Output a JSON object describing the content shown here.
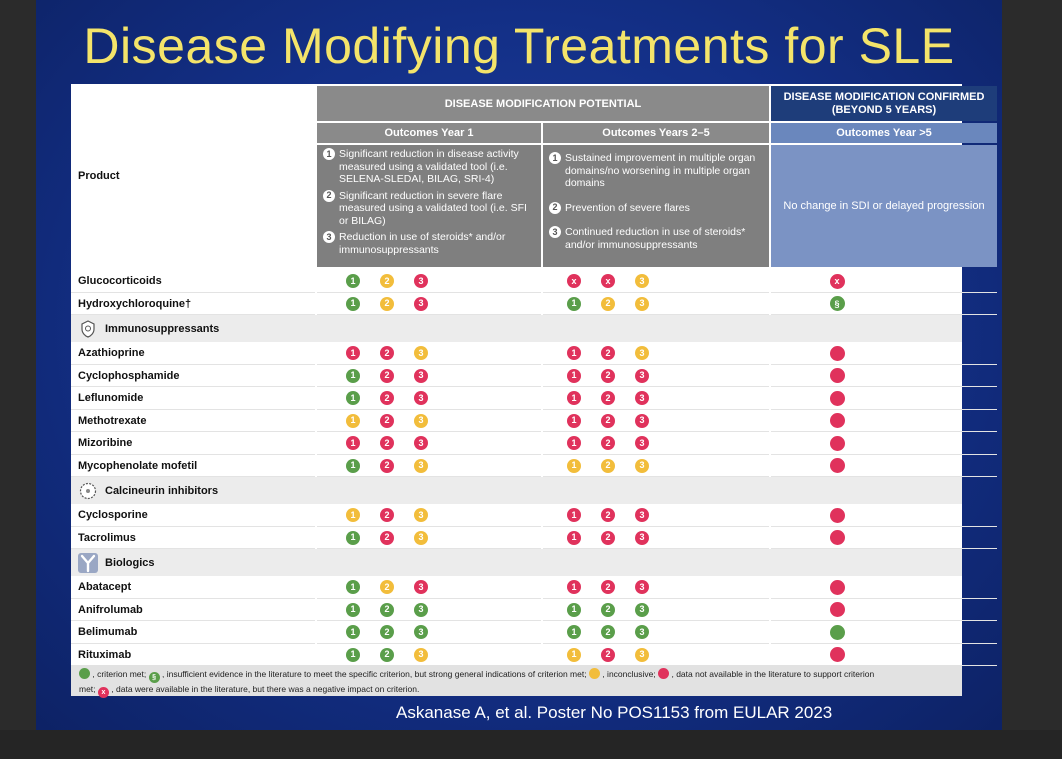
{
  "title": "Disease Modifying Treatments for SLE",
  "citation": "Askanase A, et al. Poster No POS1153 from EULAR 2023",
  "colors": {
    "met": "#5a9e4a",
    "inconclusive": "#f2bd3b",
    "no_data": "#e0325c",
    "negative": "#e0325c"
  },
  "header": {
    "product": "Product",
    "potential": "DISEASE MODIFICATION POTENTIAL",
    "confirmed": "DISEASE MODIFICATION CONFIRMED (BEYOND 5 YEARS)",
    "year1": "Outcomes Year 1",
    "year25": "Outcomes Years 2–5",
    "year5": "Outcomes Year >5",
    "y1_criteria": [
      {
        "num": "1",
        "text": "Significant reduction in disease activity measured using a validated tool (i.e. SELENA-SLEDAI, BILAG, SRI-4)"
      },
      {
        "num": "2",
        "text": "Significant reduction in severe flare measured using a validated tool (i.e. SFI or BILAG)"
      },
      {
        "num": "3",
        "text": "Reduction in use of steroids* and/or immunosuppressants"
      }
    ],
    "y25_criteria": [
      {
        "num": "1",
        "text": "Sustained improvement in multiple organ domains/no worsening in multiple organ domains"
      },
      {
        "num": "2",
        "text": "Prevention of severe flares"
      },
      {
        "num": "3",
        "text": "Continued reduction in use of steroids* and/or immunosuppressants"
      }
    ],
    "y5_criterion": "No change in SDI or delayed progression"
  },
  "rows": [
    {
      "type": "product",
      "name": "Glucocorticoids",
      "y1": [
        [
          "1",
          "met"
        ],
        [
          "2",
          "incon"
        ],
        [
          "3",
          "nodata"
        ]
      ],
      "y25": [
        [
          "x",
          "neg"
        ],
        [
          "x",
          "neg"
        ],
        [
          "3",
          "incon"
        ]
      ],
      "y5": [
        "x",
        "neg"
      ]
    },
    {
      "type": "product",
      "name": "Hydroxychloroquine†",
      "y1": [
        [
          "1",
          "met"
        ],
        [
          "2",
          "incon"
        ],
        [
          "3",
          "nodata"
        ]
      ],
      "y25": [
        [
          "1",
          "met"
        ],
        [
          "2",
          "incon"
        ],
        [
          "3",
          "incon"
        ]
      ],
      "y5": [
        "§",
        "met"
      ]
    },
    {
      "type": "group",
      "name": "Immunosuppressants",
      "icon": "shield-icon"
    },
    {
      "type": "product",
      "name": "Azathioprine",
      "y1": [
        [
          "1",
          "nodata"
        ],
        [
          "2",
          "nodata"
        ],
        [
          "3",
          "incon"
        ]
      ],
      "y25": [
        [
          "1",
          "nodata"
        ],
        [
          "2",
          "nodata"
        ],
        [
          "3",
          "incon"
        ]
      ],
      "y5": [
        "",
        "nodata"
      ]
    },
    {
      "type": "product",
      "name": "Cyclophosphamide",
      "y1": [
        [
          "1",
          "met"
        ],
        [
          "2",
          "nodata"
        ],
        [
          "3",
          "nodata"
        ]
      ],
      "y25": [
        [
          "1",
          "nodata"
        ],
        [
          "2",
          "nodata"
        ],
        [
          "3",
          "nodata"
        ]
      ],
      "y5": [
        "",
        "nodata"
      ]
    },
    {
      "type": "product",
      "name": "Leflunomide",
      "y1": [
        [
          "1",
          "met"
        ],
        [
          "2",
          "nodata"
        ],
        [
          "3",
          "nodata"
        ]
      ],
      "y25": [
        [
          "1",
          "nodata"
        ],
        [
          "2",
          "nodata"
        ],
        [
          "3",
          "nodata"
        ]
      ],
      "y5": [
        "",
        "nodata"
      ]
    },
    {
      "type": "product",
      "name": "Methotrexate",
      "y1": [
        [
          "1",
          "incon"
        ],
        [
          "2",
          "nodata"
        ],
        [
          "3",
          "incon"
        ]
      ],
      "y25": [
        [
          "1",
          "nodata"
        ],
        [
          "2",
          "nodata"
        ],
        [
          "3",
          "nodata"
        ]
      ],
      "y5": [
        "",
        "nodata"
      ]
    },
    {
      "type": "product",
      "name": "Mizoribine",
      "y1": [
        [
          "1",
          "nodata"
        ],
        [
          "2",
          "nodata"
        ],
        [
          "3",
          "nodata"
        ]
      ],
      "y25": [
        [
          "1",
          "nodata"
        ],
        [
          "2",
          "nodata"
        ],
        [
          "3",
          "nodata"
        ]
      ],
      "y5": [
        "",
        "nodata"
      ]
    },
    {
      "type": "product",
      "name": "Mycophenolate mofetil",
      "y1": [
        [
          "1",
          "met"
        ],
        [
          "2",
          "nodata"
        ],
        [
          "3",
          "incon"
        ]
      ],
      "y25": [
        [
          "1",
          "incon"
        ],
        [
          "2",
          "incon"
        ],
        [
          "3",
          "incon"
        ]
      ],
      "y5": [
        "",
        "nodata"
      ]
    },
    {
      "type": "group",
      "name": "Calcineurin inhibitors",
      "icon": "cell-icon"
    },
    {
      "type": "product",
      "name": "Cyclosporine",
      "y1": [
        [
          "1",
          "incon"
        ],
        [
          "2",
          "nodata"
        ],
        [
          "3",
          "incon"
        ]
      ],
      "y25": [
        [
          "1",
          "nodata"
        ],
        [
          "2",
          "nodata"
        ],
        [
          "3",
          "nodata"
        ]
      ],
      "y5": [
        "",
        "nodata"
      ]
    },
    {
      "type": "product",
      "name": "Tacrolimus",
      "y1": [
        [
          "1",
          "met"
        ],
        [
          "2",
          "nodata"
        ],
        [
          "3",
          "incon"
        ]
      ],
      "y25": [
        [
          "1",
          "nodata"
        ],
        [
          "2",
          "nodata"
        ],
        [
          "3",
          "nodata"
        ]
      ],
      "y5": [
        "",
        "nodata"
      ]
    },
    {
      "type": "group",
      "name": "Biologics",
      "icon": "antibody-icon"
    },
    {
      "type": "product",
      "name": "Abatacept",
      "y1": [
        [
          "1",
          "met"
        ],
        [
          "2",
          "incon"
        ],
        [
          "3",
          "nodata"
        ]
      ],
      "y25": [
        [
          "1",
          "nodata"
        ],
        [
          "2",
          "nodata"
        ],
        [
          "3",
          "nodata"
        ]
      ],
      "y5": [
        "",
        "nodata"
      ]
    },
    {
      "type": "product",
      "name": "Anifrolumab",
      "y1": [
        [
          "1",
          "met"
        ],
        [
          "2",
          "met"
        ],
        [
          "3",
          "met"
        ]
      ],
      "y25": [
        [
          "1",
          "met"
        ],
        [
          "2",
          "met"
        ],
        [
          "3",
          "met"
        ]
      ],
      "y5": [
        "",
        "nodata"
      ]
    },
    {
      "type": "product",
      "name": "Belimumab",
      "y1": [
        [
          "1",
          "met"
        ],
        [
          "2",
          "met"
        ],
        [
          "3",
          "met"
        ]
      ],
      "y25": [
        [
          "1",
          "met"
        ],
        [
          "2",
          "met"
        ],
        [
          "3",
          "met"
        ]
      ],
      "y5": [
        "",
        "met"
      ]
    },
    {
      "type": "product",
      "name": "Rituximab",
      "y1": [
        [
          "1",
          "met"
        ],
        [
          "2",
          "met"
        ],
        [
          "3",
          "incon"
        ]
      ],
      "y25": [
        [
          "1",
          "incon"
        ],
        [
          "2",
          "nodata"
        ],
        [
          "3",
          "incon"
        ]
      ],
      "y5": [
        "",
        "nodata"
      ]
    }
  ],
  "legend": {
    "met": ", criterion met;",
    "ins_symbol": "§",
    "insufficient": ", insufficient evidence in the literature to meet the specific criterion, but strong general indications of criterion met;",
    "inconclusive": ", inconclusive;",
    "no_data": ", data not available in the literature to support criterion",
    "met_cont": "met;",
    "neg_symbol": "x",
    "negative": ", data were available in the literature, but there was a negative impact on criterion."
  }
}
